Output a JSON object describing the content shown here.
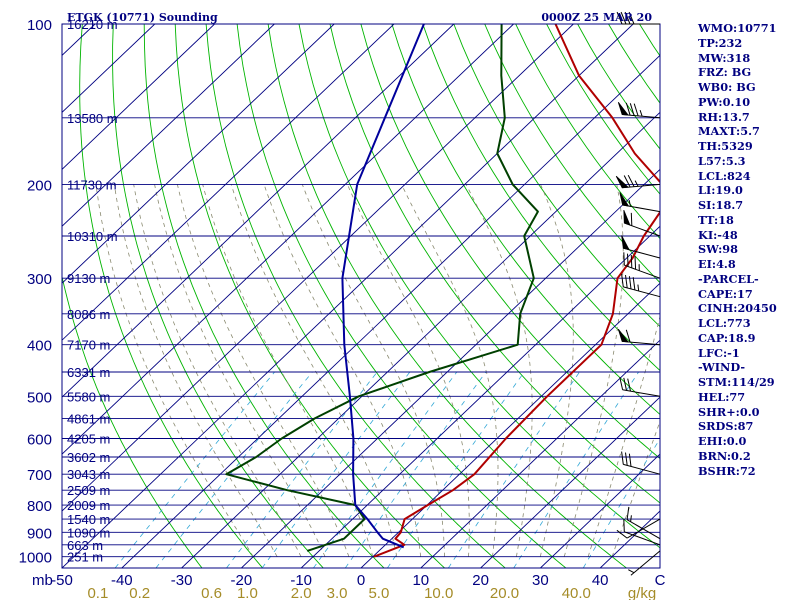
{
  "title": {
    "station": "ETGK (10771) Sounding",
    "time": "0000Z 25 MAR 20"
  },
  "chart_data": {
    "type": "skew-t",
    "axis_unit_pressure": "mb",
    "axis_unit_mixing": "g/kg",
    "p_top": 100,
    "p_bottom": 1050,
    "t_range_at_bottom": [
      -50,
      50
    ],
    "pressure_ticks": [
      100,
      200,
      300,
      400,
      500,
      600,
      700,
      800,
      900,
      1000
    ],
    "temperature_ticks": [
      -50,
      -40,
      -30,
      -20,
      -10,
      0,
      10,
      20,
      30,
      40
    ],
    "mixing_ratio_labels": [
      {
        "label": "0.1",
        "t_at_bottom": -44
      },
      {
        "label": "0.2",
        "t_at_bottom": -37
      },
      {
        "label": "0.6",
        "t_at_bottom": -25
      },
      {
        "label": "1.0",
        "t_at_bottom": -19
      },
      {
        "label": "2.0",
        "t_at_bottom": -10
      },
      {
        "label": "3.0",
        "t_at_bottom": -4
      },
      {
        "label": "5.0",
        "t_at_bottom": 3
      },
      {
        "label": "10.0",
        "t_at_bottom": 13
      },
      {
        "label": "20.0",
        "t_at_bottom": 24
      },
      {
        "label": "40.0",
        "t_at_bottom": 36
      },
      {
        "label": "g/kg",
        "t_at_bottom": 47
      }
    ],
    "height_labels": [
      {
        "p": 100,
        "label": "16210 m"
      },
      {
        "p": 150,
        "label": "13580 m"
      },
      {
        "p": 200,
        "label": "11730 m"
      },
      {
        "p": 250,
        "label": "10310 m"
      },
      {
        "p": 300,
        "label": "9130 m"
      },
      {
        "p": 350,
        "label": "8086 m"
      },
      {
        "p": 400,
        "label": "7170 m"
      },
      {
        "p": 450,
        "label": "6331 m"
      },
      {
        "p": 500,
        "label": "5580 m"
      },
      {
        "p": 550,
        "label": "4861 m"
      },
      {
        "p": 600,
        "label": "4205 m"
      },
      {
        "p": 650,
        "label": "3602 m"
      },
      {
        "p": 700,
        "label": "3043 m"
      },
      {
        "p": 750,
        "label": "2509 m"
      },
      {
        "p": 800,
        "label": "2009 m"
      },
      {
        "p": 850,
        "label": "1540 m"
      },
      {
        "p": 900,
        "label": "1090 m"
      },
      {
        "p": 950,
        "label": "663 m"
      },
      {
        "p": 1000,
        "label": "251 m"
      }
    ],
    "series": [
      {
        "name": "temperature",
        "color": "#b00000",
        "points": [
          [
            1000,
            0.2
          ],
          [
            950,
            3.2
          ],
          [
            925,
            0.6
          ],
          [
            900,
            0.4
          ],
          [
            850,
            -1.3
          ],
          [
            800,
            0.1
          ],
          [
            750,
            1.7
          ],
          [
            700,
            2.5
          ],
          [
            600,
            1.5
          ],
          [
            500,
            1
          ],
          [
            400,
            1
          ],
          [
            350,
            -2.5
          ],
          [
            300,
            -8
          ],
          [
            275,
            -9
          ],
          [
            250,
            -11
          ],
          [
            225,
            -12.5
          ],
          [
            200,
            -17
          ],
          [
            175,
            -27
          ],
          [
            150,
            -37
          ],
          [
            125,
            -50
          ],
          [
            100,
            -63
          ]
        ]
      },
      {
        "name": "dewpoint",
        "color": "#004000",
        "points": [
          [
            975,
            -12
          ],
          [
            925,
            -8
          ],
          [
            850,
            -8
          ],
          [
            800,
            -12
          ],
          [
            750,
            -26
          ],
          [
            700,
            -39
          ],
          [
            650,
            -37
          ],
          [
            600,
            -36
          ],
          [
            550,
            -34
          ],
          [
            500,
            -30.5
          ],
          [
            450,
            -23
          ],
          [
            400,
            -13
          ],
          [
            350,
            -18
          ],
          [
            300,
            -22
          ],
          [
            250,
            -31
          ],
          [
            225,
            -33
          ],
          [
            200,
            -42
          ],
          [
            175,
            -50
          ],
          [
            150,
            -55
          ],
          [
            125,
            -63
          ],
          [
            100,
            -72
          ]
        ]
      },
      {
        "name": "parcel",
        "color": "#00009c",
        "points": [
          [
            960,
            3.5
          ],
          [
            925,
            -1.5
          ],
          [
            900,
            -3.5
          ],
          [
            850,
            -7.5
          ],
          [
            800,
            -12
          ],
          [
            700,
            -17.8
          ],
          [
            600,
            -24
          ],
          [
            500,
            -32
          ],
          [
            400,
            -42
          ],
          [
            300,
            -54
          ],
          [
            200,
            -68
          ],
          [
            100,
            -85
          ]
        ]
      }
    ],
    "wind_barbs": [
      {
        "p": 100,
        "dir": 270,
        "speed": 40
      },
      {
        "p": 150,
        "dir": 275,
        "speed": 85
      },
      {
        "p": 200,
        "dir": 265,
        "speed": 75
      },
      {
        "p": 225,
        "dir": 280,
        "speed": 55
      },
      {
        "p": 250,
        "dir": 290,
        "speed": 60
      },
      {
        "p": 275,
        "dir": 285,
        "speed": 50
      },
      {
        "p": 300,
        "dir": 290,
        "speed": 45
      },
      {
        "p": 325,
        "dir": 285,
        "speed": 45
      },
      {
        "p": 400,
        "dir": 275,
        "speed": 60
      },
      {
        "p": 500,
        "dir": 280,
        "speed": 30
      },
      {
        "p": 700,
        "dir": 285,
        "speed": 30
      },
      {
        "p": 850,
        "dir": 240,
        "speed": 10
      },
      {
        "p": 925,
        "dir": 300,
        "speed": 15
      },
      {
        "p": 950,
        "dir": 290,
        "speed": 10
      },
      {
        "p": 975,
        "dir": 230,
        "speed": 5
      }
    ]
  },
  "indices": [
    "WMO:10771",
    "TP:232",
    "MW:318",
    "FRZ: BG",
    "WB0: BG",
    "PW:0.10",
    "RH:13.7",
    "MAXT:5.7",
    "TH:5329",
    "L57:5.3",
    "LCL:824",
    "LI:19.0",
    "SI:18.7",
    "TT:18",
    "KI:-48",
    "SW:98",
    "EI:4.8",
    "-PARCEL-",
    "CAPE:17",
    "CINH:20450",
    "LCL:773",
    "CAP:18.9",
    "LFC:-1",
    "-WIND-",
    "STM:114/29",
    "HEL:77",
    "SHR+:0.0",
    "SRDS:87",
    "EHI:0.0",
    "BRN:0.2",
    "BSHR:72"
  ]
}
